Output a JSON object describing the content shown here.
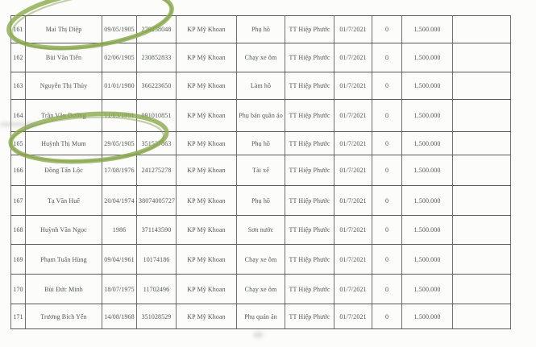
{
  "document": {
    "kind": "scanned-support-payment-roster",
    "ward_repeated_value": "KP Mỹ Khoan",
    "town_repeated_value": "TT Hiệp Phước",
    "date_repeated_value": "01/7/2021",
    "amount_repeated_value": "1.500.000"
  },
  "table": {
    "fields": [
      "no",
      "name",
      "dob",
      "id_number",
      "ward",
      "occupation",
      "town",
      "start_date",
      "zero",
      "amount",
      "note"
    ],
    "rows": [
      {
        "no": "161",
        "name": "Mai Thị Diệp",
        "dob": "09/05/1905",
        "id_number": "270258048",
        "ward": "KP Mỹ Khoan",
        "occupation": "Phụ hồ",
        "town": "TT Hiệp Phước",
        "start_date": "01/7/2021",
        "zero": "0",
        "amount": "1.500.000",
        "note": ""
      },
      {
        "no": "162",
        "name": "Bùi Văn Tiến",
        "dob": "02/06/1905",
        "id_number": "230852833",
        "ward": "KP Mỹ Khoan",
        "occupation": "Chạy xe ôm",
        "town": "TT Hiệp Phước",
        "start_date": "01/7/2021",
        "zero": "0",
        "amount": "1.500.000",
        "note": ""
      },
      {
        "no": "163",
        "name": "Nguyễn Thị Thủy",
        "dob": "01/01/1980",
        "id_number": "366223650",
        "ward": "KP Mỹ Khoan",
        "occupation": "Làm hồ",
        "town": "TT Hiệp Phước",
        "start_date": "01/7/2021",
        "zero": "0",
        "amount": "1.500.000",
        "note": ""
      },
      {
        "no": "164",
        "name": "Trần Văn Dưỡng",
        "dob": "11/03/1991",
        "id_number": "091010851",
        "ward": "KP Mỹ Khoan",
        "occupation": "Phụ bán quần áo",
        "town": "TT Hiệp Phước",
        "start_date": "01/7/2021",
        "zero": "0",
        "amount": "1.500.000",
        "note": ""
      },
      {
        "no": "165",
        "name": "Huỳnh Thị Mum",
        "dob": "29/05/1905",
        "id_number": "351527863",
        "ward": "KP Mỹ Khoan",
        "occupation": "Phụ hồ",
        "town": "TT Hiệp Phước",
        "start_date": "01/7/2021",
        "zero": "0",
        "amount": "1.500.000",
        "note": ""
      },
      {
        "no": "166",
        "name": "Đồng Tấn Lộc",
        "dob": "17/08/1976",
        "id_number": "241275278",
        "ward": "KP Mỹ Khoan",
        "occupation": "Tài xế",
        "town": "TT Hiệp Phước",
        "start_date": "01/7/2021",
        "zero": "0",
        "amount": "1.500.000",
        "note": ""
      },
      {
        "no": "167",
        "name": "Tạ Văn Huế",
        "dob": "20/04/1974",
        "id_number": "38074005727",
        "ward": "KP Mỹ Khoan",
        "occupation": "Phụ hồ",
        "town": "TT Hiệp Phước",
        "start_date": "01/7/2021",
        "zero": "0",
        "amount": "1.500.000",
        "note": ""
      },
      {
        "no": "168",
        "name": "Huỳnh Văn Ngọc",
        "dob": "1986",
        "id_number": "371143590",
        "ward": "KP Mỹ Khoan",
        "occupation": "Sơn nước",
        "town": "TT Hiệp Phước",
        "start_date": "01/7/2021",
        "zero": "0",
        "amount": "1.500.000",
        "note": ""
      },
      {
        "no": "169",
        "name": "Phạm Tuấn Hùng",
        "dob": "09/04/1961",
        "id_number": "10174186",
        "ward": "KP Mỹ Khoan",
        "occupation": "Chạy xe ôm",
        "town": "TT Hiệp Phước",
        "start_date": "01/7/2021",
        "zero": "0",
        "amount": "1.500.000",
        "note": ""
      },
      {
        "no": "170",
        "name": "Bùi Đức Minh",
        "dob": "18/07/1975",
        "id_number": "11702496",
        "ward": "KP Mỹ Khoan",
        "occupation": "Chạy xe ôm",
        "town": "TT Hiệp Phước",
        "start_date": "01/7/2021",
        "zero": "0",
        "amount": "1.500.000",
        "note": ""
      },
      {
        "no": "171",
        "name": "Trương Bích Yến",
        "dob": "14/08/1968",
        "id_number": "351028529",
        "ward": "KP Mỹ Khoan",
        "occupation": "Phụ quán ăn",
        "town": "TT Hiệp Phước",
        "start_date": "01/7/2021",
        "zero": "0",
        "amount": "1.500.000",
        "note": ""
      }
    ]
  },
  "annotations": {
    "marker_color": "#8dab4f",
    "circled_row_numbers": [
      "161",
      "165"
    ]
  }
}
